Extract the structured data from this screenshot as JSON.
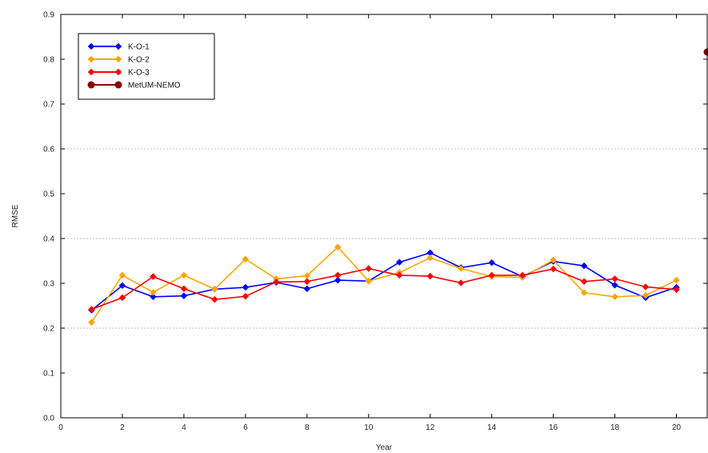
{
  "chart_data": {
    "type": "line",
    "xlabel": "Year",
    "ylabel": "RMSE",
    "xlim": [
      0,
      21
    ],
    "ylim": [
      0,
      0.9
    ],
    "xticks": [
      0,
      2,
      4,
      6,
      8,
      10,
      12,
      14,
      16,
      18,
      20
    ],
    "xtick_labels": [
      "0",
      "2",
      "4",
      "6",
      "8",
      "10",
      "12",
      "14",
      "16",
      "18",
      "20"
    ],
    "yticks": [
      0,
      0.1,
      0.2,
      0.3,
      0.4,
      0.5,
      0.6,
      0.7,
      0.8,
      0.9
    ],
    "ytick_labels": [
      "0.0",
      "0.1",
      "0.2",
      "0.3",
      "0.4",
      "0.5",
      "0.6",
      "0.7",
      "0.8",
      "0.9"
    ],
    "grid": "horizontal dotted",
    "legend_position": "top-left",
    "series": [
      {
        "name": "K-O-1",
        "color": "#0000ff",
        "marker": "diamond",
        "x": [
          1,
          2,
          3,
          4,
          5,
          6,
          7,
          8,
          9,
          10,
          11,
          12,
          13,
          14,
          15,
          16,
          17,
          18,
          19,
          20
        ],
        "y": [
          0.24,
          0.295,
          0.27,
          0.272,
          0.287,
          0.291,
          0.302,
          0.288,
          0.307,
          0.305,
          0.347,
          0.368,
          0.335,
          0.346,
          0.315,
          0.349,
          0.339,
          0.296,
          0.268,
          0.291
        ]
      },
      {
        "name": "K-O-2",
        "color": "#ffa500",
        "marker": "diamond",
        "x": [
          1,
          2,
          3,
          4,
          5,
          6,
          7,
          8,
          9,
          10,
          11,
          12,
          13,
          14,
          15,
          16,
          17,
          18,
          19,
          20
        ],
        "y": [
          0.213,
          0.318,
          0.28,
          0.318,
          0.287,
          0.354,
          0.31,
          0.317,
          0.381,
          0.305,
          0.324,
          0.357,
          0.333,
          0.315,
          0.313,
          0.352,
          0.279,
          0.27,
          0.273,
          0.307
        ]
      },
      {
        "name": "K-O-3",
        "color": "#ff0000",
        "marker": "diamond",
        "x": [
          1,
          2,
          3,
          4,
          5,
          6,
          7,
          8,
          9,
          10,
          11,
          12,
          13,
          14,
          15,
          16,
          17,
          18,
          19,
          20
        ],
        "y": [
          0.242,
          0.268,
          0.315,
          0.288,
          0.264,
          0.271,
          0.303,
          0.304,
          0.318,
          0.333,
          0.318,
          0.316,
          0.301,
          0.318,
          0.318,
          0.332,
          0.304,
          0.31,
          0.292,
          0.286
        ]
      },
      {
        "name": "MetUM-NEMO",
        "color": "#8b0000",
        "marker": "circle",
        "x": [
          21
        ],
        "y": [
          0.816
        ]
      }
    ]
  }
}
